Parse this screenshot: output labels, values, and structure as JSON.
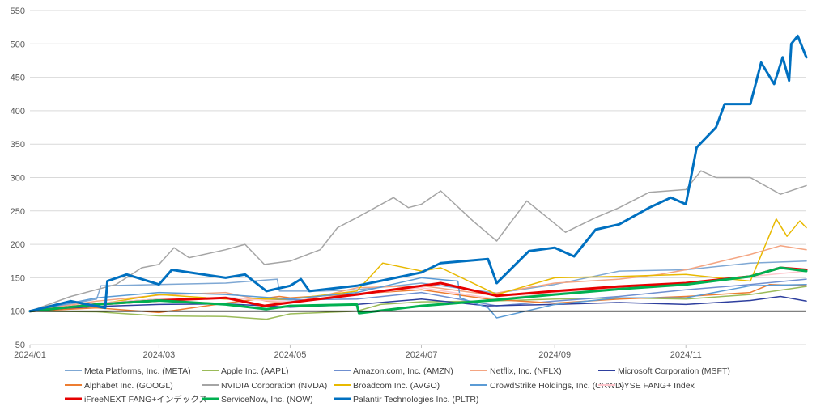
{
  "chart_data": {
    "type": "line",
    "title": "",
    "xlabel": "",
    "ylabel": "",
    "ylim": [
      50,
      550
    ],
    "yticks": [
      50,
      100,
      150,
      200,
      250,
      300,
      350,
      400,
      450,
      500,
      550
    ],
    "xlim": [
      "2024/01",
      "2024/12/27"
    ],
    "xtick_labels": [
      "2024/01",
      "2024/03",
      "2024/05",
      "2024/07",
      "2024/09",
      "2024/11"
    ],
    "xtick_values": [
      "2024/01",
      "2024/03",
      "2024/05",
      "2024/07",
      "2024/09",
      "2024/11"
    ],
    "grid": "horizontal",
    "legend_position": "bottom",
    "baseline": 100,
    "series": [
      {
        "name": "Meta Platforms, Inc. (META)",
        "color": "#7FA8D4",
        "width": 1.5,
        "points": [
          [
            "2024/01",
            100
          ],
          [
            "2024/01/15",
            108
          ],
          [
            "2024/02/01",
            118
          ],
          [
            "2024/02/03",
            138
          ],
          [
            "2024/03/01",
            140
          ],
          [
            "2024/04/01",
            142
          ],
          [
            "2024/04/25",
            148
          ],
          [
            "2024/04/26",
            130
          ],
          [
            "2024/05/15",
            130
          ],
          [
            "2024/06/01",
            132
          ],
          [
            "2024/07/01",
            142
          ],
          [
            "2024/08/05",
            127
          ],
          [
            "2024/09/01",
            140
          ],
          [
            "2024/10/01",
            160
          ],
          [
            "2024/11/01",
            162
          ],
          [
            "2024/12/01",
            172
          ],
          [
            "2024/12/27",
            175
          ]
        ]
      },
      {
        "name": "Apple Inc. (AAPL)",
        "color": "#9BBB59",
        "width": 1.5,
        "points": [
          [
            "2024/01",
            100
          ],
          [
            "2024/02/01",
            99
          ],
          [
            "2024/03/01",
            93
          ],
          [
            "2024/04/01",
            92
          ],
          [
            "2024/04/20",
            88
          ],
          [
            "2024/05/01",
            96
          ],
          [
            "2024/06/01",
            100
          ],
          [
            "2024/06/12",
            110
          ],
          [
            "2024/07/01",
            114
          ],
          [
            "2024/08/01",
            115
          ],
          [
            "2024/09/01",
            118
          ],
          [
            "2024/10/01",
            120
          ],
          [
            "2024/11/01",
            118
          ],
          [
            "2024/12/01",
            125
          ],
          [
            "2024/12/27",
            137
          ]
        ]
      },
      {
        "name": "Amazon.com, Inc. (AMZN)",
        "color": "#6F8FD0",
        "width": 1.5,
        "points": [
          [
            "2024/01",
            100
          ],
          [
            "2024/02/01",
            112
          ],
          [
            "2024/03/01",
            118
          ],
          [
            "2024/04/01",
            120
          ],
          [
            "2024/05/01",
            117
          ],
          [
            "2024/06/01",
            118
          ],
          [
            "2024/07/01",
            128
          ],
          [
            "2024/08/05",
            108
          ],
          [
            "2024/09/01",
            115
          ],
          [
            "2024/10/01",
            122
          ],
          [
            "2024/11/01",
            132
          ],
          [
            "2024/12/01",
            140
          ],
          [
            "2024/12/27",
            148
          ]
        ]
      },
      {
        "name": "Netflix, Inc. (NFLX)",
        "color": "#F4A582",
        "width": 1.5,
        "points": [
          [
            "2024/01",
            100
          ],
          [
            "2024/02/01",
            115
          ],
          [
            "2024/03/01",
            124
          ],
          [
            "2024/04/01",
            128
          ],
          [
            "2024/04/20",
            115
          ],
          [
            "2024/05/01",
            112
          ],
          [
            "2024/06/01",
            135
          ],
          [
            "2024/07/01",
            138
          ],
          [
            "2024/08/01",
            125
          ],
          [
            "2024/09/01",
            142
          ],
          [
            "2024/10/01",
            148
          ],
          [
            "2024/10/20",
            155
          ],
          [
            "2024/11/01",
            162
          ],
          [
            "2024/12/01",
            185
          ],
          [
            "2024/12/15",
            198
          ],
          [
            "2024/12/27",
            192
          ]
        ]
      },
      {
        "name": "Microsoft Corporation (MSFT)",
        "color": "#2E3F9E",
        "width": 1.5,
        "points": [
          [
            "2024/01",
            100
          ],
          [
            "2024/02/01",
            107
          ],
          [
            "2024/03/01",
            110
          ],
          [
            "2024/04/01",
            111
          ],
          [
            "2024/05/01",
            106
          ],
          [
            "2024/06/01",
            110
          ],
          [
            "2024/07/01",
            118
          ],
          [
            "2024/08/01",
            108
          ],
          [
            "2024/09/01",
            110
          ],
          [
            "2024/10/01",
            113
          ],
          [
            "2024/11/01",
            110
          ],
          [
            "2024/12/01",
            116
          ],
          [
            "2024/12/15",
            122
          ],
          [
            "2024/12/27",
            115
          ]
        ]
      },
      {
        "name": "Alphabet Inc. (GOOGL)",
        "color": "#ED7D31",
        "width": 1.5,
        "points": [
          [
            "2024/01",
            100
          ],
          [
            "2024/02/01",
            105
          ],
          [
            "2024/03/01",
            98
          ],
          [
            "2024/04/01",
            112
          ],
          [
            "2024/04/26",
            122
          ],
          [
            "2024/05/01",
            120
          ],
          [
            "2024/06/01",
            126
          ],
          [
            "2024/07/01",
            132
          ],
          [
            "2024/08/01",
            118
          ],
          [
            "2024/09/01",
            112
          ],
          [
            "2024/10/01",
            118
          ],
          [
            "2024/11/01",
            122
          ],
          [
            "2024/12/01",
            128
          ],
          [
            "2024/12/10",
            140
          ],
          [
            "2024/12/27",
            138
          ]
        ]
      },
      {
        "name": "NVIDIA Corporation (NVDA)",
        "color": "#A5A5A5",
        "width": 1.5,
        "points": [
          [
            "2024/01",
            100
          ],
          [
            "2024/01/20",
            122
          ],
          [
            "2024/02/10",
            140
          ],
          [
            "2024/02/22",
            165
          ],
          [
            "2024/03/01",
            170
          ],
          [
            "2024/03/08",
            195
          ],
          [
            "2024/03/15",
            180
          ],
          [
            "2024/04/01",
            192
          ],
          [
            "2024/04/10",
            200
          ],
          [
            "2024/04/19",
            170
          ],
          [
            "2024/05/01",
            175
          ],
          [
            "2024/05/15",
            192
          ],
          [
            "2024/05/23",
            225
          ],
          [
            "2024/06/01",
            240
          ],
          [
            "2024/06/18",
            270
          ],
          [
            "2024/06/25",
            255
          ],
          [
            "2024/07/01",
            260
          ],
          [
            "2024/07/10",
            280
          ],
          [
            "2024/07/25",
            235
          ],
          [
            "2024/08/05",
            205
          ],
          [
            "2024/08/19",
            265
          ],
          [
            "2024/09/06",
            218
          ],
          [
            "2024/09/20",
            240
          ],
          [
            "2024/10/01",
            255
          ],
          [
            "2024/10/15",
            278
          ],
          [
            "2024/11/01",
            282
          ],
          [
            "2024/11/08",
            310
          ],
          [
            "2024/11/15",
            300
          ],
          [
            "2024/12/01",
            300
          ],
          [
            "2024/12/15",
            275
          ],
          [
            "2024/12/27",
            288
          ]
        ]
      },
      {
        "name": "Broadcom Inc. (AVGO)",
        "color": "#E8B900",
        "width": 1.5,
        "points": [
          [
            "2024/01",
            100
          ],
          [
            "2024/02/01",
            110
          ],
          [
            "2024/03/01",
            125
          ],
          [
            "2024/04/01",
            118
          ],
          [
            "2024/05/01",
            118
          ],
          [
            "2024/06/01",
            130
          ],
          [
            "2024/06/13",
            172
          ],
          [
            "2024/07/01",
            160
          ],
          [
            "2024/07/10",
            165
          ],
          [
            "2024/08/05",
            125
          ],
          [
            "2024/09/01",
            150
          ],
          [
            "2024/10/01",
            152
          ],
          [
            "2024/11/01",
            155
          ],
          [
            "2024/12/01",
            145
          ],
          [
            "2024/12/13",
            238
          ],
          [
            "2024/12/18",
            212
          ],
          [
            "2024/12/24",
            235
          ],
          [
            "2024/12/27",
            225
          ]
        ]
      },
      {
        "name": "CrowdStrike Holdings, Inc. (CRWD)",
        "color": "#5B9BD5",
        "width": 1.5,
        "points": [
          [
            "2024/01",
            100
          ],
          [
            "2024/02/01",
            120
          ],
          [
            "2024/03/01",
            128
          ],
          [
            "2024/04/01",
            125
          ],
          [
            "2024/05/01",
            118
          ],
          [
            "2024/06/01",
            128
          ],
          [
            "2024/07/01",
            150
          ],
          [
            "2024/07/18",
            145
          ],
          [
            "2024/07/19",
            120
          ],
          [
            "2024/08/01",
            105
          ],
          [
            "2024/08/05",
            90
          ],
          [
            "2024/09/01",
            110
          ],
          [
            "2024/10/01",
            120
          ],
          [
            "2024/11/01",
            120
          ],
          [
            "2024/12/01",
            138
          ],
          [
            "2024/12/27",
            140
          ]
        ]
      },
      {
        "name": "NYSE FANG+ Index",
        "color": "#FFC7CE",
        "width": 1.5,
        "points": [
          [
            "2024/01",
            100
          ],
          [
            "2024/02/01",
            112
          ],
          [
            "2024/03/01",
            118
          ],
          [
            "2024/04/01",
            120
          ],
          [
            "2024/05/01",
            114
          ],
          [
            "2024/06/01",
            125
          ],
          [
            "2024/07/01",
            135
          ],
          [
            "2024/08/05",
            118
          ],
          [
            "2024/09/01",
            128
          ],
          [
            "2024/10/01",
            135
          ],
          [
            "2024/11/01",
            142
          ],
          [
            "2024/12/01",
            152
          ],
          [
            "2024/12/27",
            160
          ]
        ]
      },
      {
        "name": "iFreeNEXT FANG+インデックス",
        "color": "#E60000",
        "width": 3,
        "points": [
          [
            "2024/01",
            100
          ],
          [
            "2024/02/01",
            110
          ],
          [
            "2024/03/01",
            116
          ],
          [
            "2024/04/01",
            120
          ],
          [
            "2024/04/19",
            108
          ],
          [
            "2024/05/01",
            113
          ],
          [
            "2024/06/01",
            125
          ],
          [
            "2024/07/01",
            138
          ],
          [
            "2024/07/10",
            142
          ],
          [
            "2024/08/05",
            123
          ],
          [
            "2024/09/01",
            130
          ],
          [
            "2024/10/01",
            137
          ],
          [
            "2024/11/01",
            142
          ],
          [
            "2024/12/01",
            152
          ],
          [
            "2024/12/15",
            165
          ],
          [
            "2024/12/27",
            162
          ]
        ]
      },
      {
        "name": "ServiceNow, Inc. (NOW)",
        "color": "#00B050",
        "width": 3,
        "points": [
          [
            "2024/01",
            100
          ],
          [
            "2024/02/01",
            110
          ],
          [
            "2024/03/01",
            116
          ],
          [
            "2024/04/01",
            110
          ],
          [
            "2024/04/20",
            103
          ],
          [
            "2024/05/01",
            108
          ],
          [
            "2024/06/01",
            110
          ],
          [
            "2024/06/02",
            97
          ],
          [
            "2024/07/01",
            108
          ],
          [
            "2024/08/05",
            117
          ],
          [
            "2024/09/01",
            125
          ],
          [
            "2024/10/01",
            133
          ],
          [
            "2024/11/01",
            140
          ],
          [
            "2024/12/01",
            152
          ],
          [
            "2024/12/15",
            165
          ],
          [
            "2024/12/27",
            160
          ]
        ]
      },
      {
        "name": "Palantir Technologies Inc. (PLTR)",
        "color": "#0070C0",
        "width": 3,
        "points": [
          [
            "2024/01",
            100
          ],
          [
            "2024/01/20",
            115
          ],
          [
            "2024/02/05",
            105
          ],
          [
            "2024/02/06",
            145
          ],
          [
            "2024/02/15",
            155
          ],
          [
            "2024/03/01",
            140
          ],
          [
            "2024/03/07",
            162
          ],
          [
            "2024/04/01",
            150
          ],
          [
            "2024/04/10",
            155
          ],
          [
            "2024/04/20",
            130
          ],
          [
            "2024/05/01",
            138
          ],
          [
            "2024/05/06",
            148
          ],
          [
            "2024/05/10",
            130
          ],
          [
            "2024/06/01",
            138
          ],
          [
            "2024/07/01",
            158
          ],
          [
            "2024/07/10",
            172
          ],
          [
            "2024/08/01",
            178
          ],
          [
            "2024/08/05",
            142
          ],
          [
            "2024/08/20",
            190
          ],
          [
            "2024/09/01",
            195
          ],
          [
            "2024/09/10",
            182
          ],
          [
            "2024/09/20",
            222
          ],
          [
            "2024/10/01",
            230
          ],
          [
            "2024/10/15",
            255
          ],
          [
            "2024/10/25",
            270
          ],
          [
            "2024/11/01",
            260
          ],
          [
            "2024/11/06",
            345
          ],
          [
            "2024/11/15",
            375
          ],
          [
            "2024/11/19",
            410
          ],
          [
            "2024/12/01",
            410
          ],
          [
            "2024/12/06",
            472
          ],
          [
            "2024/12/12",
            440
          ],
          [
            "2024/12/16",
            480
          ],
          [
            "2024/12/19",
            445
          ],
          [
            "2024/12/20",
            500
          ],
          [
            "2024/12/23",
            512
          ],
          [
            "2024/12/27",
            480
          ]
        ]
      }
    ]
  }
}
